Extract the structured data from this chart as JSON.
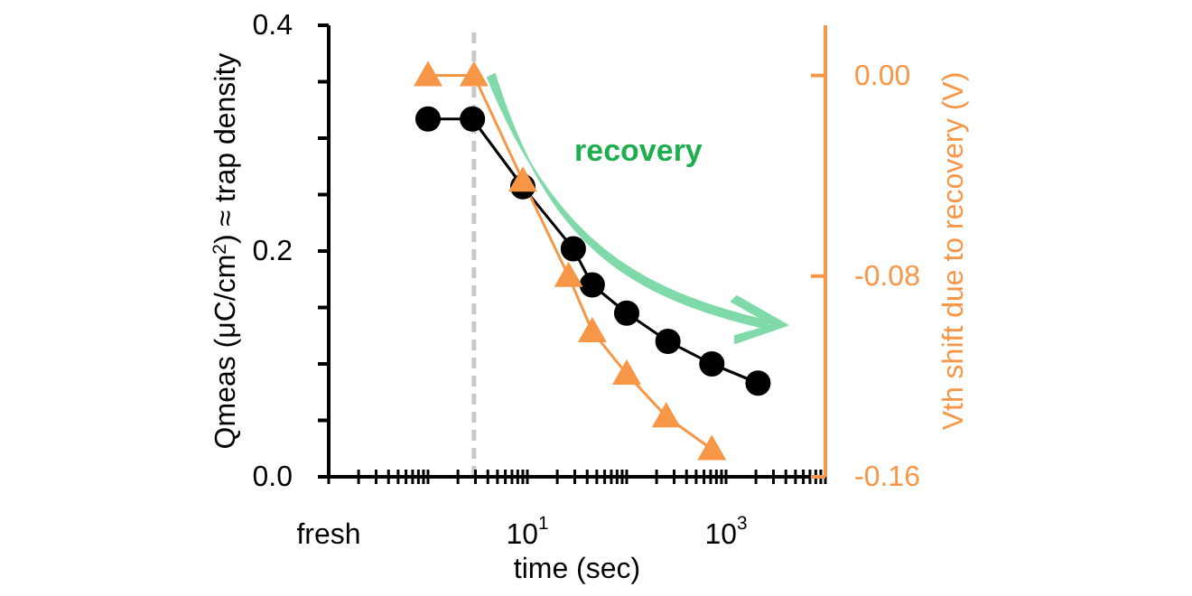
{
  "chart_data": {
    "type": "line",
    "xlabel": "time (sec)",
    "ylabel": "Qmeas (μC/cm$^{2}$) ≈ trap density",
    "y2label": "Vth shift due to recovery (V)",
    "log": "x",
    "xlim": [
      0.1,
      10000
    ],
    "xticks": [
      {
        "value": 0.1,
        "label": "fresh"
      },
      {
        "value": 0.2,
        "label": null
      },
      {
        "value": 0.3,
        "label": null
      },
      {
        "value": 0.4,
        "label": null
      },
      {
        "value": 0.5,
        "label": null
      },
      {
        "value": 0.6,
        "label": null
      },
      {
        "value": 0.7,
        "label": null
      },
      {
        "value": 0.8,
        "label": null
      },
      {
        "value": 0.9,
        "label": null
      },
      {
        "value": 1,
        "label": null
      },
      {
        "value": 2,
        "label": null
      },
      {
        "value": 3,
        "label": null
      },
      {
        "value": 4,
        "label": null
      },
      {
        "value": 5,
        "label": null
      },
      {
        "value": 6,
        "label": null
      },
      {
        "value": 7,
        "label": null
      },
      {
        "value": 8,
        "label": null
      },
      {
        "value": 9,
        "label": null
      },
      {
        "value": 10,
        "label": "10$^{1}$"
      },
      {
        "value": 20,
        "label": null
      },
      {
        "value": 30,
        "label": null
      },
      {
        "value": 40,
        "label": null
      },
      {
        "value": 50,
        "label": null
      },
      {
        "value": 60,
        "label": null
      },
      {
        "value": 70,
        "label": null
      },
      {
        "value": 80,
        "label": null
      },
      {
        "value": 90,
        "label": null
      },
      {
        "value": 100,
        "label": null
      },
      {
        "value": 200,
        "label": null
      },
      {
        "value": 300,
        "label": null
      },
      {
        "value": 400,
        "label": null
      },
      {
        "value": 500,
        "label": null
      },
      {
        "value": 600,
        "label": null
      },
      {
        "value": 700,
        "label": null
      },
      {
        "value": 800,
        "label": null
      },
      {
        "value": 900,
        "label": null
      },
      {
        "value": 1000,
        "label": "10$^{3}$"
      },
      {
        "value": 2000,
        "label": null
      },
      {
        "value": 3000,
        "label": null
      },
      {
        "value": 4000,
        "label": null
      },
      {
        "value": 5000,
        "label": null
      },
      {
        "value": 6000,
        "label": null
      },
      {
        "value": 7000,
        "label": null
      },
      {
        "value": 8000,
        "label": null
      },
      {
        "value": 9000,
        "label": null
      },
      {
        "value": 10000,
        "label": null
      }
    ],
    "ylim": [
      0,
      0.4
    ],
    "yticks": [
      {
        "value": 0,
        "label": "0.0"
      },
      {
        "value": 0.05,
        "label": null
      },
      {
        "value": 0.1,
        "label": null
      },
      {
        "value": 0.15,
        "label": null
      },
      {
        "value": 0.2,
        "label": "0.2"
      },
      {
        "value": 0.25,
        "label": null
      },
      {
        "value": 0.3,
        "label": null
      },
      {
        "value": 0.35,
        "label": null
      },
      {
        "value": 0.4,
        "label": "0.4"
      }
    ],
    "y2lim": [
      -0.16,
      0.02
    ],
    "y2ticks": [
      {
        "value": -0.16,
        "label": "-0.16"
      },
      {
        "value": -0.08,
        "label": "-0.08"
      },
      {
        "value": 0,
        "label": "0.00"
      }
    ],
    "series": [
      {
        "color": "#000000",
        "marker": "circle",
        "x": [
          1,
          2.8,
          9,
          29,
          45,
          100,
          260,
          720,
          2100
        ],
        "values": [
          0.317,
          0.317,
          0.257,
          0.202,
          0.17,
          0.145,
          0.12,
          0.1,
          0.083
        ]
      },
      {
        "color": "#f79646",
        "marker": "triangle",
        "axis": "y2",
        "x": [
          1,
          2.9,
          9,
          26,
          45,
          100,
          250,
          720
        ],
        "values": [
          0,
          0,
          -0.042,
          -0.08,
          -0.102,
          -0.119,
          -0.136,
          -0.149
        ]
      }
    ],
    "ref_lines": [
      {
        "axis": "x",
        "value": 2.9,
        "color": "#c8c8c8",
        "line_style": "dashed"
      }
    ],
    "annotations": [
      "recovery"
    ]
  }
}
